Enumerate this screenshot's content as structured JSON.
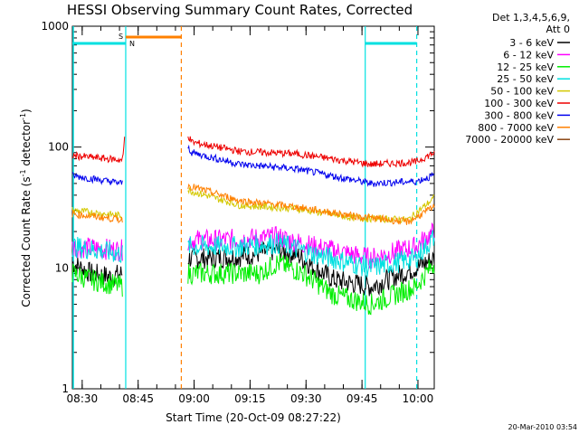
{
  "chart_data": {
    "type": "line",
    "title": "HESSI Observing Summary Count Rates, Corrected",
    "xlabel": "Start Time (20-Oct-09 08:27:22)",
    "ylabel": "Corrected Count Rate (s⁻¹ detector⁻¹)",
    "ylabel_main": "Corrected Count Rate (s",
    "ylabel_mid": " detector",
    "ylabel_end": ")",
    "ylabel_sup": "-1",
    "y_scale": "log",
    "ylim": [
      1,
      1000
    ],
    "xlim_minutes": [
      0,
      97
    ],
    "y_ticks": [
      "1",
      "10",
      "100",
      "1000"
    ],
    "x_ticks": [
      "08:30",
      "08:45",
      "09:00",
      "09:15",
      "09:30",
      "09:45",
      "10:00"
    ],
    "timestamp": "20-Mar-2010 03:54",
    "legend_header_1": "Det 1,3,4,5,6,9,",
    "legend_header_2": "Att 0",
    "legend_position": "right",
    "markers": [
      {
        "label": "S",
        "color": "#ff8000"
      },
      {
        "label": "N",
        "color": "#00e0e0"
      }
    ],
    "series": [
      {
        "name": "3 - 6 keV",
        "color": "#000000",
        "segments": [
          {
            "x": [
              0,
              5,
              10,
              13.5
            ],
            "y": [
              11,
              9,
              8.5,
              9
            ]
          },
          {
            "x": [
              31,
              35,
              45,
              55,
              60,
              65,
              70,
              80,
              92,
              97
            ],
            "y": [
              12,
              12,
              12.5,
              14,
              13,
              10,
              8,
              7,
              10,
              12
            ]
          }
        ]
      },
      {
        "name": "6 - 12 keV",
        "color": "#ff00ff",
        "segments": [
          {
            "x": [
              0,
              13.5
            ],
            "y": [
              15,
              14
            ]
          },
          {
            "x": [
              31,
              40,
              55,
              65,
              80,
              92,
              97
            ],
            "y": [
              17,
              17,
              18,
              15,
              12,
              15,
              20
            ]
          }
        ]
      },
      {
        "name": "12 - 25 keV",
        "color": "#00ee00",
        "segments": [
          {
            "x": [
              0,
              5,
              13.5
            ],
            "y": [
              9,
              8,
              7
            ]
          },
          {
            "x": [
              31,
              40,
              50,
              55,
              62,
              70,
              80,
              92,
              97
            ],
            "y": [
              9,
              9,
              9,
              11,
              9,
              6,
              5,
              7,
              11
            ]
          }
        ]
      },
      {
        "name": "25 - 50 keV",
        "color": "#00e0e0",
        "segments": [
          {
            "x": [
              0,
              13.5
            ],
            "y": [
              15,
              13
            ]
          },
          {
            "x": [
              31,
              45,
              55,
              65,
              80,
              92,
              97
            ],
            "y": [
              15,
              15,
              16,
              13,
              10,
              12,
              18
            ]
          }
        ]
      },
      {
        "name": "50 - 100 keV",
        "color": "#d4c800",
        "segments": [
          {
            "x": [
              0,
              13.5
            ],
            "y": [
              30,
              27
            ]
          },
          {
            "x": [
              31,
              45,
              60,
              75,
              90,
              97
            ],
            "y": [
              44,
              33,
              31,
              26,
              25,
              38
            ]
          }
        ]
      },
      {
        "name": "100 - 300 keV",
        "color": "#ee0000",
        "segments": [
          {
            "x": [
              0,
              13.5,
              14
            ],
            "y": [
              85,
              78,
              120
            ]
          },
          {
            "x": [
              31,
              32,
              45,
              60,
              80,
              92,
              97
            ],
            "y": [
              125,
              110,
              92,
              88,
              72,
              75,
              90
            ]
          }
        ]
      },
      {
        "name": "300 - 800 keV",
        "color": "#0000ee",
        "segments": [
          {
            "x": [
              0,
              13.5
            ],
            "y": [
              58,
              50
            ]
          },
          {
            "x": [
              31,
              32,
              45,
              60,
              80,
              92,
              97
            ],
            "y": [
              100,
              90,
              72,
              66,
              50,
              52,
              58
            ]
          }
        ]
      },
      {
        "name": "800 - 7000 keV",
        "color": "#ff8000",
        "segments": [
          {
            "x": [
              0,
              13.5
            ],
            "y": [
              28,
              25
            ]
          },
          {
            "x": [
              31,
              45,
              60,
              75,
              90,
              97
            ],
            "y": [
              48,
              36,
              32,
              27,
              24,
              32
            ]
          }
        ]
      },
      {
        "name": "7000 - 20000 keV",
        "color": "#8b4513",
        "segments": []
      }
    ]
  }
}
